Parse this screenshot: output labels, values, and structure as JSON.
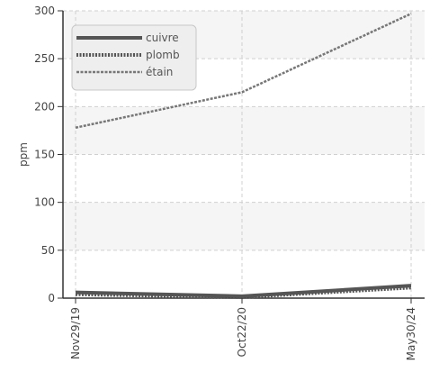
{
  "chart_data": {
    "type": "line",
    "title": "",
    "xlabel": "",
    "ylabel": "ppm",
    "x": [
      "Nov29/19",
      "Oct22/20",
      "May30/24"
    ],
    "ylim": [
      0,
      300
    ],
    "yticks": [
      0,
      50,
      100,
      150,
      200,
      250,
      300
    ],
    "grid": true,
    "legend_position": "top-left",
    "series": [
      {
        "name": "cuivre",
        "values": [
          6,
          2,
          13
        ],
        "color": "#555555",
        "style": "solid"
      },
      {
        "name": "plomb",
        "values": [
          4,
          1,
          11
        ],
        "color": "#555555",
        "style": "dotted"
      },
      {
        "name": "étain",
        "values": [
          178,
          215,
          297
        ],
        "color": "#777777",
        "style": "dashed"
      }
    ]
  }
}
